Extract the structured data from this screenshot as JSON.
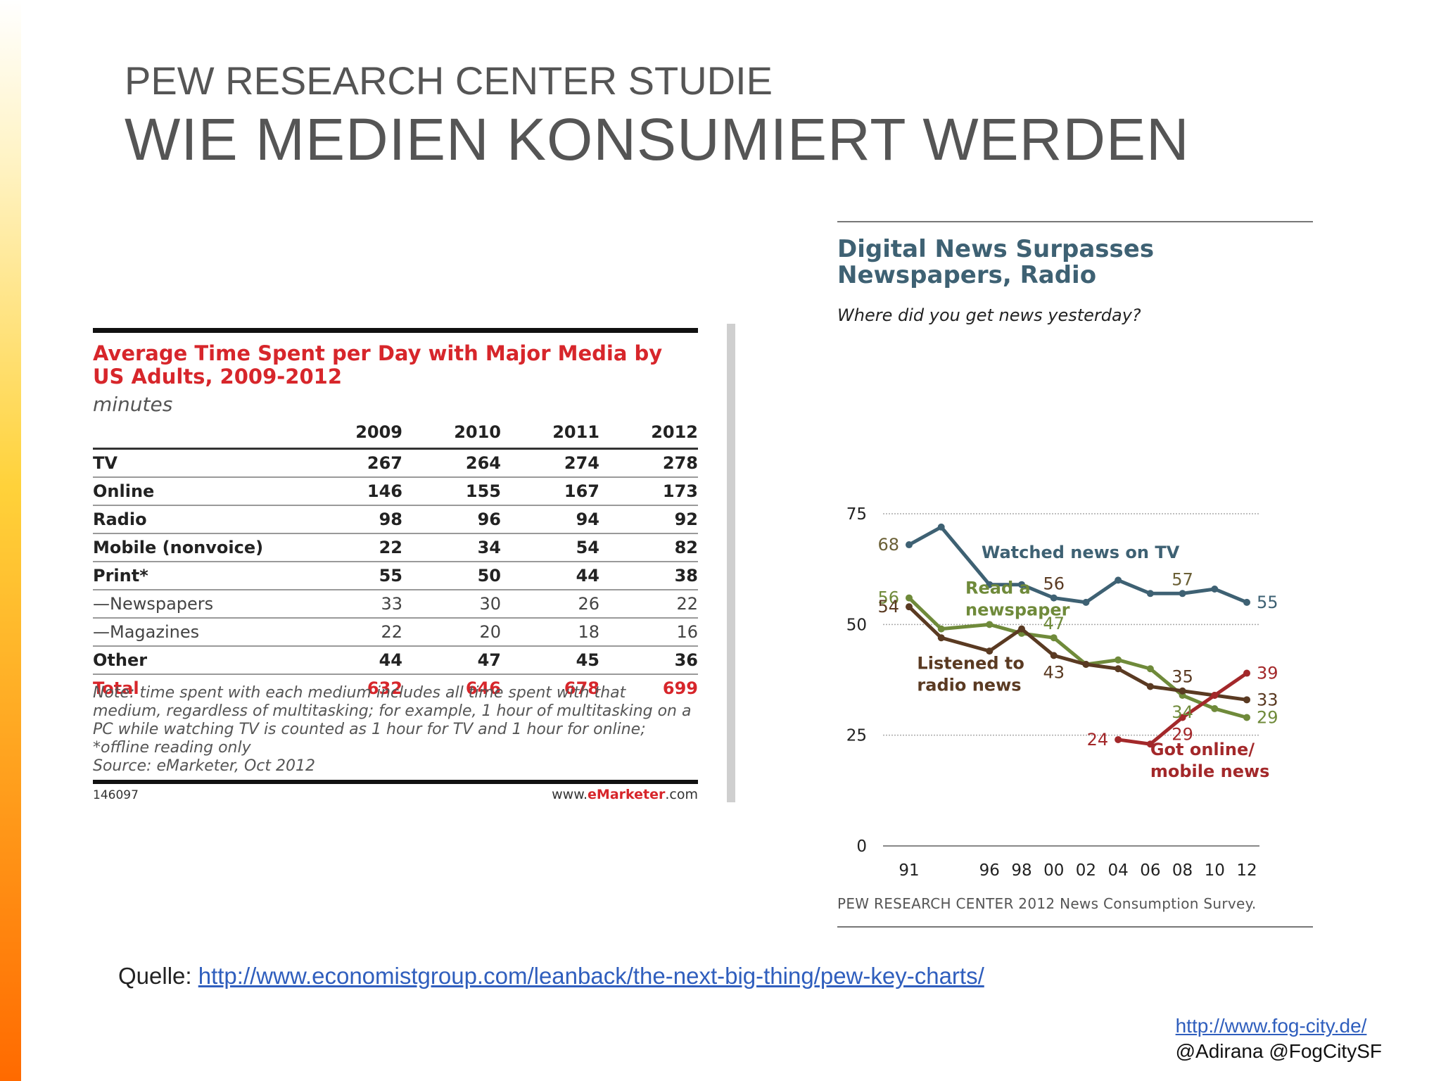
{
  "slide": {
    "supertitle": "PEW RESEARCH CENTER STUDIE",
    "title": "WIE MEDIEN KONSUMIERT WERDEN"
  },
  "table": {
    "title": "Average Time Spent per Day with Major Media by US Adults, 2009-2012",
    "unit": "minutes",
    "columns": [
      "2009",
      "2010",
      "2011",
      "2012"
    ],
    "rows": [
      {
        "label": "TV",
        "values": [
          "267",
          "264",
          "274",
          "278"
        ]
      },
      {
        "label": "Online",
        "values": [
          "146",
          "155",
          "167",
          "173"
        ]
      },
      {
        "label": "Radio",
        "values": [
          "98",
          "96",
          "94",
          "92"
        ]
      },
      {
        "label": "Mobile (nonvoice)",
        "values": [
          "22",
          "34",
          "54",
          "82"
        ]
      },
      {
        "label": "Print*",
        "values": [
          "55",
          "50",
          "44",
          "38"
        ]
      },
      {
        "label": "—Newspapers",
        "values": [
          "33",
          "30",
          "26",
          "22"
        ]
      },
      {
        "label": "—Magazines",
        "values": [
          "22",
          "20",
          "18",
          "16"
        ]
      },
      {
        "label": "Other",
        "values": [
          "44",
          "47",
          "45",
          "36"
        ]
      },
      {
        "label": "Total",
        "values": [
          "632",
          "646",
          "678",
          "699"
        ]
      }
    ],
    "note": "Note: time spent with each medium includes all time spent with that medium, regardless of multitasking; for example, 1 hour of multitasking on a PC while watching TV is counted as 1 hour for TV and 1 hour for online; *offline reading only",
    "source": "Source: eMarketer, Oct 2012",
    "id": "146097",
    "brand_prefix": "www.",
    "brand_bold": "eMarketer",
    "brand_suffix": ".com"
  },
  "chart_data": {
    "type": "line",
    "title": "Digital News Surpasses Newspapers, Radio",
    "subtitle": "Where did you get news yesterday?",
    "source": "PEW RESEARCH CENTER 2012 News Consumption Survey.",
    "x": [
      1991,
      1993,
      1996,
      1998,
      2000,
      2002,
      2004,
      2006,
      2008,
      2010,
      2012
    ],
    "x_tick_values": [
      1991,
      1996,
      1998,
      2000,
      2002,
      2004,
      2006,
      2008,
      2010,
      2012
    ],
    "x_tick_labels": [
      "91",
      "96",
      "98",
      "00",
      "02",
      "04",
      "06",
      "08",
      "10",
      "12"
    ],
    "y_ticks": [
      0,
      25,
      50,
      75
    ],
    "ylim": [
      0,
      75
    ],
    "series": [
      {
        "name": "Watched news on TV",
        "color": "#3e6173",
        "points": [
          [
            1991,
            68
          ],
          [
            1993,
            72
          ],
          [
            1996,
            59
          ],
          [
            1998,
            59
          ],
          [
            2000,
            56
          ],
          [
            2002,
            55
          ],
          [
            2004,
            60
          ],
          [
            2006,
            57
          ],
          [
            2008,
            57
          ],
          [
            2010,
            58
          ],
          [
            2012,
            55
          ]
        ]
      },
      {
        "name": "Read a newspaper",
        "color": "#6f8a3a",
        "points": [
          [
            1991,
            56
          ],
          [
            1993,
            49
          ],
          [
            1996,
            50
          ],
          [
            1998,
            48
          ],
          [
            2000,
            47
          ],
          [
            2002,
            41
          ],
          [
            2004,
            42
          ],
          [
            2006,
            40
          ],
          [
            2008,
            34
          ],
          [
            2010,
            31
          ],
          [
            2012,
            29
          ]
        ]
      },
      {
        "name": "Listened to radio news",
        "color": "#5a3a22",
        "points": [
          [
            1991,
            54
          ],
          [
            1993,
            47
          ],
          [
            1996,
            44
          ],
          [
            1998,
            49
          ],
          [
            2000,
            43
          ],
          [
            2002,
            41
          ],
          [
            2004,
            40
          ],
          [
            2006,
            36
          ],
          [
            2008,
            35
          ],
          [
            2010,
            34
          ],
          [
            2012,
            33
          ]
        ]
      },
      {
        "name": "Got online/ mobile news",
        "color": "#a3282a",
        "points": [
          [
            2004,
            24
          ],
          [
            2006,
            23
          ],
          [
            2008,
            29
          ],
          [
            2010,
            34
          ],
          [
            2012,
            39
          ]
        ]
      }
    ],
    "data_labels": [
      {
        "text": "68",
        "x": 1991,
        "y": 68,
        "color": "#6b6036",
        "pos": "left"
      },
      {
        "text": "56",
        "x": 1991,
        "y": 56,
        "color": "#6f8a3a",
        "pos": "left"
      },
      {
        "text": "54",
        "x": 1991,
        "y": 54,
        "color": "#5a3a22",
        "pos": "left"
      },
      {
        "text": "56",
        "x": 2000,
        "y": 56,
        "color": "#5a3a22",
        "pos": "above"
      },
      {
        "text": "57",
        "x": 2008,
        "y": 57,
        "color": "#6b6036",
        "pos": "above"
      },
      {
        "text": "55",
        "x": 2012,
        "y": 55,
        "color": "#3e6173",
        "pos": "right"
      },
      {
        "text": "47",
        "x": 2000,
        "y": 47,
        "color": "#6f8a3a",
        "pos": "above"
      },
      {
        "text": "43",
        "x": 2000,
        "y": 43,
        "color": "#5a3a22",
        "pos": "below"
      },
      {
        "text": "35",
        "x": 2008,
        "y": 35,
        "color": "#5a3a22",
        "pos": "above"
      },
      {
        "text": "34",
        "x": 2008,
        "y": 34,
        "color": "#6f8a3a",
        "pos": "below"
      },
      {
        "text": "39",
        "x": 2012,
        "y": 39,
        "color": "#a3282a",
        "pos": "right"
      },
      {
        "text": "33",
        "x": 2012,
        "y": 33,
        "color": "#5a3a22",
        "pos": "right"
      },
      {
        "text": "29",
        "x": 2012,
        "y": 29,
        "color": "#6f8a3a",
        "pos": "right"
      },
      {
        "text": "24",
        "x": 2004,
        "y": 24,
        "color": "#a3282a",
        "pos": "left"
      },
      {
        "text": "29",
        "x": 2008,
        "y": 29,
        "color": "#a3282a",
        "pos": "below"
      }
    ],
    "series_labels": [
      {
        "lines": [
          "Watched news on TV"
        ],
        "color": "#3e6173",
        "x": 1995.5,
        "y": 65
      },
      {
        "lines": [
          "Read a",
          "newspaper"
        ],
        "color": "#6f8a3a",
        "x": 1994.5,
        "y": 57
      },
      {
        "lines": [
          "Listened to",
          "radio news"
        ],
        "color": "#5a3a22",
        "x": 1991.5,
        "y": 40
      },
      {
        "lines": [
          "Got online/",
          "mobile news"
        ],
        "color": "#a3282a",
        "x": 2006,
        "y": 20.5
      }
    ]
  },
  "footer": {
    "quelle_label": "Quelle: ",
    "quelle_url": "http://www.economistgroup.com/leanback/the-next-big-thing/pew-key-charts/",
    "site_url": "http://www.fog-city.de/",
    "handles": "@Adirana @FogCitySF"
  }
}
